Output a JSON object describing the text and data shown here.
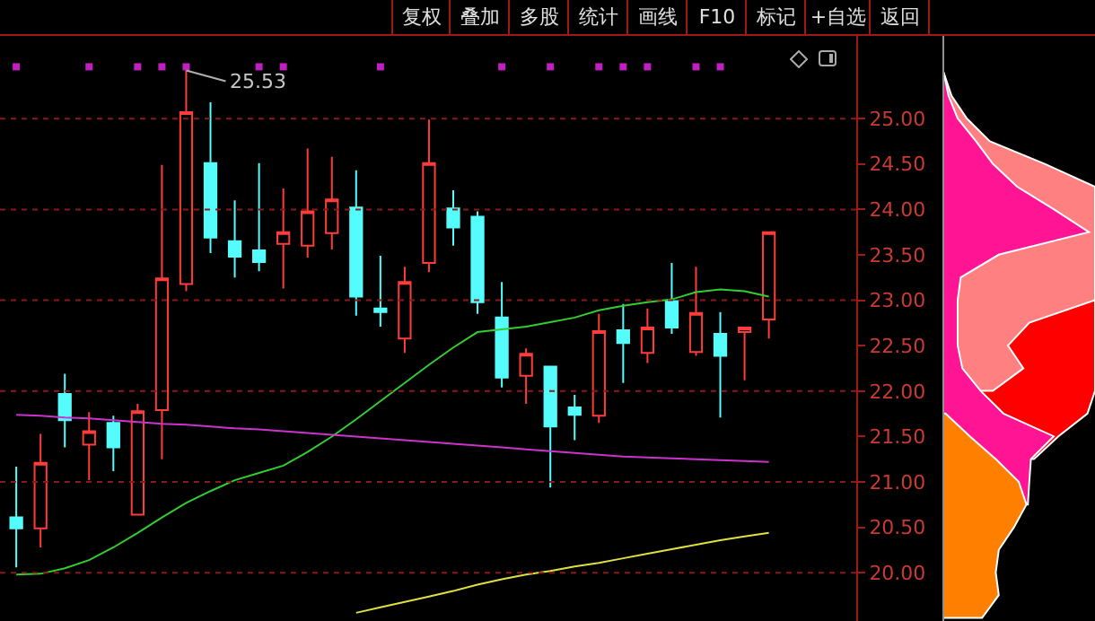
{
  "chart_data": {
    "type": "candlestick",
    "categories": [
      null,
      null,
      null,
      null,
      null,
      null,
      null,
      null,
      null,
      null,
      null,
      null,
      null,
      null,
      null,
      null,
      null,
      null,
      null,
      null,
      null,
      null,
      null,
      null,
      null,
      null,
      null,
      null,
      null,
      null,
      null,
      null
    ],
    "ohlc": [
      [
        20.61,
        21.17,
        20.06,
        20.49
      ],
      [
        20.49,
        21.53,
        20.28,
        21.21
      ],
      [
        21.97,
        22.19,
        21.38,
        21.68
      ],
      [
        21.41,
        21.77,
        21.02,
        21.56
      ],
      [
        21.65,
        21.73,
        21.12,
        21.38
      ],
      [
        20.64,
        21.86,
        20.64,
        21.78
      ],
      [
        21.79,
        24.49,
        21.25,
        23.24
      ],
      [
        23.18,
        25.53,
        23.1,
        25.07
      ],
      [
        24.51,
        25.18,
        23.52,
        23.69
      ],
      [
        23.65,
        24.1,
        23.25,
        23.48
      ],
      [
        23.55,
        24.51,
        23.32,
        23.42
      ],
      [
        23.62,
        24.23,
        23.13,
        23.75
      ],
      [
        23.6,
        24.67,
        23.47,
        23.98
      ],
      [
        23.74,
        24.58,
        23.56,
        24.11
      ],
      [
        24.02,
        24.43,
        22.83,
        23.04
      ],
      [
        22.91,
        23.49,
        22.71,
        22.87
      ],
      [
        22.58,
        23.37,
        22.42,
        23.2
      ],
      [
        23.41,
        24.99,
        23.31,
        24.51
      ],
      [
        24.01,
        24.21,
        23.6,
        23.8
      ],
      [
        23.92,
        23.98,
        22.85,
        22.98
      ],
      [
        22.81,
        23.2,
        22.04,
        22.15
      ],
      [
        22.17,
        22.47,
        21.86,
        22.41
      ],
      [
        22.27,
        22.27,
        20.94,
        21.61
      ],
      [
        21.82,
        21.96,
        21.46,
        21.74
      ],
      [
        21.73,
        22.85,
        21.65,
        22.66
      ],
      [
        22.67,
        22.96,
        22.09,
        22.53
      ],
      [
        22.42,
        22.91,
        22.31,
        22.7
      ],
      [
        22.99,
        23.41,
        22.63,
        22.7
      ],
      [
        22.43,
        23.37,
        22.39,
        22.86
      ],
      [
        22.63,
        22.87,
        21.71,
        22.39
      ],
      [
        22.65,
        22.7,
        22.12,
        22.7
      ],
      [
        22.79,
        23.75,
        22.58,
        23.75
      ]
    ],
    "series": [
      {
        "type": "line",
        "color": "#33cc33",
        "values": [
          19.98,
          19.99,
          20.05,
          20.14,
          20.28,
          20.44,
          20.61,
          20.77,
          20.9,
          21.02,
          21.1,
          21.18,
          21.33,
          21.5,
          21.69,
          21.89,
          22.09,
          22.29,
          22.48,
          22.65,
          22.68,
          22.71,
          22.76,
          22.81,
          22.89,
          22.94,
          22.98,
          23.01,
          23.09,
          23.12,
          23.1,
          23.04
        ]
      },
      {
        "type": "line",
        "color": "#cc33cc",
        "values": [
          21.74,
          21.73,
          21.71,
          21.7,
          21.68,
          21.66,
          21.64,
          21.63,
          21.61,
          21.59,
          21.58,
          21.56,
          21.54,
          21.52,
          21.5,
          21.48,
          21.46,
          21.44,
          21.42,
          21.4,
          21.38,
          21.36,
          21.34,
          21.32,
          21.3,
          21.28,
          21.27,
          21.26,
          21.25,
          21.24,
          21.23,
          21.22
        ]
      },
      {
        "type": "line",
        "color": "#e0e040",
        "values": [
          null,
          null,
          null,
          null,
          null,
          null,
          null,
          null,
          null,
          null,
          null,
          null,
          null,
          null,
          19.56,
          19.62,
          19.68,
          19.74,
          19.8,
          19.87,
          19.93,
          19.98,
          20.02,
          20.07,
          20.11,
          20.16,
          20.21,
          20.26,
          20.31,
          20.36,
          20.4,
          20.44
        ]
      },
      {
        "type": "scatter",
        "color": "#c020c0",
        "marker": "square",
        "values": [
          25.57,
          null,
          null,
          25.57,
          null,
          25.57,
          25.57,
          25.57,
          null,
          null,
          25.57,
          25.57,
          null,
          null,
          null,
          25.57,
          null,
          null,
          null,
          null,
          25.57,
          null,
          25.57,
          null,
          25.57,
          25.57,
          25.57,
          null,
          25.57,
          25.57,
          null,
          null
        ]
      }
    ],
    "ylim": [
      19.47,
      25.91
    ],
    "yticks": [
      {
        "value": 20,
        "label": "20.00"
      },
      {
        "value": 20.5,
        "label": "20.50"
      },
      {
        "value": 21,
        "label": "21.00"
      },
      {
        "value": 21.5,
        "label": "21.50"
      },
      {
        "value": 22,
        "label": "22.00"
      },
      {
        "value": 22.5,
        "label": "22.50"
      },
      {
        "value": 23,
        "label": "23.00"
      },
      {
        "value": 23.5,
        "label": "23.50"
      },
      {
        "value": 24,
        "label": "24.00"
      },
      {
        "value": 24.5,
        "label": "24.50"
      },
      {
        "value": 25,
        "label": "25.00"
      }
    ],
    "grid": "y",
    "annotations": [
      "复权",
      "叠加",
      "多股",
      "统计",
      "画线",
      "F10",
      "标记",
      "+自选",
      "返回",
      {
        "text": "25.53",
        "y": 25.53
      }
    ]
  }
}
